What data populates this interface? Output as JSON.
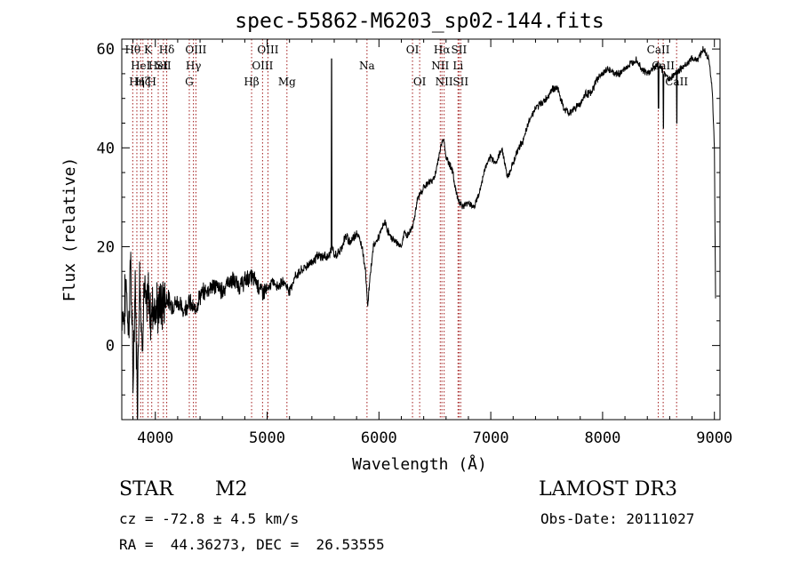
{
  "chart_data": {
    "type": "line",
    "title": "spec-55862-M6203_sp02-144.fits",
    "xlabel": "Wavelength (Å)",
    "ylabel": "Flux (relative)",
    "xlim": [
      3700,
      9050
    ],
    "ylim": [
      -15,
      62
    ],
    "x_ticks": [
      4000,
      5000,
      6000,
      7000,
      8000,
      9000
    ],
    "y_ticks": [
      0,
      20,
      40,
      60
    ],
    "series": [
      {
        "name": "flux",
        "anchors": [
          [
            3700,
            8
          ],
          [
            3720,
            5
          ],
          [
            3740,
            14
          ],
          [
            3760,
            2
          ],
          [
            3780,
            18
          ],
          [
            3800,
            -8
          ],
          [
            3820,
            14
          ],
          [
            3840,
            -12
          ],
          [
            3860,
            16
          ],
          [
            3880,
            0
          ],
          [
            3900,
            12
          ],
          [
            3920,
            6
          ],
          [
            3940,
            11
          ],
          [
            3960,
            5
          ],
          [
            3980,
            9
          ],
          [
            4000,
            7
          ],
          [
            4050,
            8
          ],
          [
            4100,
            10
          ],
          [
            4150,
            8
          ],
          [
            4200,
            9
          ],
          [
            4250,
            7
          ],
          [
            4300,
            9
          ],
          [
            4350,
            7
          ],
          [
            4400,
            10
          ],
          [
            4450,
            11
          ],
          [
            4500,
            12
          ],
          [
            4550,
            12
          ],
          [
            4600,
            11
          ],
          [
            4650,
            13
          ],
          [
            4700,
            13
          ],
          [
            4750,
            12
          ],
          [
            4800,
            13
          ],
          [
            4850,
            14
          ],
          [
            4900,
            13
          ],
          [
            4950,
            11
          ],
          [
            5000,
            11
          ],
          [
            5050,
            13
          ],
          [
            5100,
            12
          ],
          [
            5150,
            13
          ],
          [
            5200,
            11
          ],
          [
            5250,
            14
          ],
          [
            5300,
            15
          ],
          [
            5350,
            16
          ],
          [
            5400,
            17
          ],
          [
            5450,
            18
          ],
          [
            5500,
            18
          ],
          [
            5550,
            18
          ],
          [
            5580,
            20
          ],
          [
            5600,
            18
          ],
          [
            5650,
            19
          ],
          [
            5700,
            22
          ],
          [
            5750,
            21
          ],
          [
            5800,
            23
          ],
          [
            5850,
            20
          ],
          [
            5880,
            15
          ],
          [
            5900,
            8
          ],
          [
            5920,
            14
          ],
          [
            5950,
            20
          ],
          [
            6000,
            22
          ],
          [
            6050,
            25
          ],
          [
            6100,
            22
          ],
          [
            6150,
            21
          ],
          [
            6200,
            20
          ],
          [
            6230,
            23
          ],
          [
            6250,
            22
          ],
          [
            6300,
            24
          ],
          [
            6350,
            30
          ],
          [
            6400,
            32
          ],
          [
            6450,
            33
          ],
          [
            6500,
            34
          ],
          [
            6550,
            40
          ],
          [
            6580,
            42
          ],
          [
            6600,
            38
          ],
          [
            6650,
            36
          ],
          [
            6700,
            30
          ],
          [
            6750,
            28
          ],
          [
            6800,
            29
          ],
          [
            6850,
            28
          ],
          [
            6900,
            31
          ],
          [
            6950,
            36
          ],
          [
            7000,
            38
          ],
          [
            7050,
            37
          ],
          [
            7100,
            40
          ],
          [
            7150,
            34
          ],
          [
            7200,
            37
          ],
          [
            7250,
            40
          ],
          [
            7300,
            42
          ],
          [
            7350,
            46
          ],
          [
            7400,
            48
          ],
          [
            7450,
            49
          ],
          [
            7500,
            50
          ],
          [
            7550,
            52
          ],
          [
            7600,
            52
          ],
          [
            7650,
            48
          ],
          [
            7700,
            47
          ],
          [
            7750,
            48
          ],
          [
            7800,
            49
          ],
          [
            7850,
            51
          ],
          [
            7900,
            51
          ],
          [
            7950,
            54
          ],
          [
            8000,
            55
          ],
          [
            8050,
            56
          ],
          [
            8100,
            55
          ],
          [
            8150,
            55
          ],
          [
            8200,
            56
          ],
          [
            8250,
            57
          ],
          [
            8300,
            58
          ],
          [
            8350,
            56
          ],
          [
            8400,
            55
          ],
          [
            8450,
            56
          ],
          [
            8500,
            57
          ],
          [
            8550,
            55
          ],
          [
            8600,
            54
          ],
          [
            8650,
            55
          ],
          [
            8700,
            56
          ],
          [
            8750,
            57
          ],
          [
            8800,
            58
          ],
          [
            8850,
            58
          ],
          [
            8900,
            60
          ],
          [
            8950,
            58
          ],
          [
            8980,
            52
          ],
          [
            9000,
            40
          ],
          [
            9010,
            10
          ]
        ],
        "features": [
          {
            "x": 5577,
            "y": 58
          },
          {
            "x": 8500,
            "y": 48
          },
          {
            "x": 8544,
            "y": 44
          },
          {
            "x": 8664,
            "y": 45
          }
        ]
      }
    ],
    "lines": [
      {
        "x": 3798,
        "label": "Hθ",
        "row": 0
      },
      {
        "x": 3835,
        "label": "Hη",
        "row": 2
      },
      {
        "x": 3869,
        "label": "HeI",
        "row": 1
      },
      {
        "x": 3889,
        "label": "Hζ",
        "row": 2
      },
      {
        "x": 3934,
        "label": "K",
        "row": 0
      },
      {
        "x": 3968,
        "label": "H",
        "row": 2
      },
      {
        "x": 4026,
        "label": "HeI",
        "row": 1
      },
      {
        "x": 4072,
        "label": "SII",
        "row": 1
      },
      {
        "x": 4102,
        "label": "Hδ",
        "row": 0
      },
      {
        "x": 4304,
        "label": "G",
        "row": 2
      },
      {
        "x": 4341,
        "label": "Hγ",
        "row": 1
      },
      {
        "x": 4363,
        "label": "OIII",
        "row": 0
      },
      {
        "x": 4861,
        "label": "Hβ",
        "row": 2
      },
      {
        "x": 4959,
        "label": "OIII",
        "row": 1
      },
      {
        "x": 5007,
        "label": "OIII",
        "row": 0
      },
      {
        "x": 5177,
        "label": "Mg",
        "row": 2
      },
      {
        "x": 5893,
        "label": "Na",
        "row": 1
      },
      {
        "x": 6300,
        "label": "OI",
        "row": 0
      },
      {
        "x": 6364,
        "label": "OI",
        "row": 2
      },
      {
        "x": 6548,
        "label": "NII",
        "row": 1
      },
      {
        "x": 6563,
        "label": "Hα",
        "row": 0
      },
      {
        "x": 6583,
        "label": "NII",
        "row": 2
      },
      {
        "x": 6707,
        "label": "Li",
        "row": 1
      },
      {
        "x": 6716,
        "label": "SII",
        "row": 0
      },
      {
        "x": 6731,
        "label": "SII",
        "row": 2
      },
      {
        "x": 8498,
        "label": "CaII",
        "row": 0
      },
      {
        "x": 8542,
        "label": "CaII",
        "row": 1
      },
      {
        "x": 8662,
        "label": "CaII",
        "row": 2
      }
    ]
  },
  "info": {
    "class": "STAR",
    "subclass": "M2",
    "survey": "LAMOST DR3",
    "redshift": "cz = -72.8 ± 4.5 km/s",
    "obsdate": "Obs-Date: 20111027",
    "coords": "RA =  44.36273, DEC =  26.53555"
  },
  "colors": {
    "line_marker": "#a01818",
    "spectrum": "#000000"
  }
}
